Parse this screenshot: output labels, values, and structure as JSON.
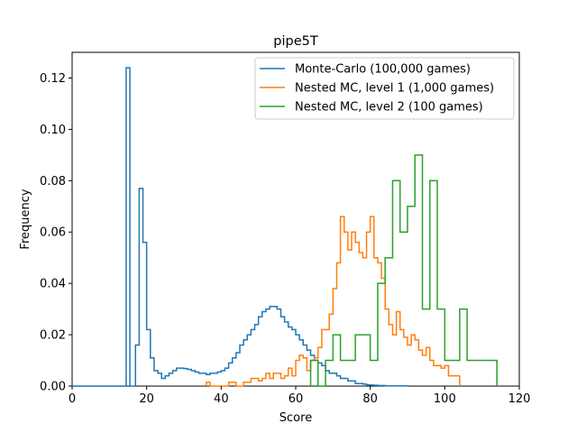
{
  "chart_data": {
    "type": "line",
    "title": "pipe5T",
    "xlabel": "Score",
    "ylabel": "Frequency",
    "xlim": [
      0,
      120
    ],
    "ylim": [
      0,
      0.13
    ],
    "x_ticks": [
      "0",
      "20",
      "40",
      "60",
      "80",
      "100",
      "120"
    ],
    "y_ticks": [
      "0.00",
      "0.02",
      "0.04",
      "0.06",
      "0.08",
      "0.10",
      "0.12"
    ],
    "grid": false,
    "legend_position": "upper-right",
    "drawstyle": "steps",
    "series": [
      {
        "name": "Monte-Carlo (100,000 games)",
        "color": "#1f77b4",
        "x": [
          0,
          14,
          14.5,
          15,
          15.5,
          16,
          16.5,
          17,
          17.5,
          18,
          18.5,
          19,
          19.5,
          20,
          20.5,
          21,
          21.5,
          22,
          23,
          24,
          25,
          26,
          27,
          28,
          29,
          30,
          31,
          32,
          33,
          34,
          35,
          36,
          37,
          38,
          39,
          40,
          41,
          42,
          43,
          44,
          45,
          46,
          47,
          48,
          49,
          50,
          51,
          52,
          53,
          54,
          55,
          56,
          57,
          58,
          59,
          60,
          61,
          62,
          63,
          64,
          65,
          66,
          67,
          68,
          69,
          70,
          71,
          72,
          73,
          74,
          75,
          76,
          77,
          78,
          79,
          80,
          81,
          82,
          83,
          84,
          85,
          86,
          87,
          88,
          89,
          90
        ],
        "y": [
          0,
          0,
          0.124,
          0.124,
          0,
          0,
          0,
          0.016,
          0.016,
          0.077,
          0.077,
          0.056,
          0.056,
          0.022,
          0.022,
          0.011,
          0.011,
          0.006,
          0.005,
          0.003,
          0.004,
          0.005,
          0.006,
          0.007,
          0.007,
          0.0068,
          0.0065,
          0.006,
          0.0055,
          0.005,
          0.005,
          0.0045,
          0.005,
          0.005,
          0.0055,
          0.006,
          0.007,
          0.009,
          0.011,
          0.013,
          0.016,
          0.018,
          0.02,
          0.022,
          0.024,
          0.027,
          0.029,
          0.03,
          0.031,
          0.031,
          0.03,
          0.027,
          0.025,
          0.023,
          0.022,
          0.02,
          0.018,
          0.016,
          0.014,
          0.012,
          0.01,
          0.009,
          0.008,
          0.006,
          0.005,
          0.005,
          0.004,
          0.003,
          0.003,
          0.002,
          0.002,
          0.001,
          0.001,
          0.0008,
          0.0005,
          0.0004,
          0.0003,
          0.0002,
          0.0002,
          0.0001,
          0.0001,
          0.0001,
          0.0001,
          0.0001,
          0.0001,
          0.0001
        ]
      },
      {
        "name": "Nested MC, level 1 (1,000 games)",
        "color": "#ff7f0e",
        "x": [
          36,
          38,
          40,
          42,
          44,
          46,
          48,
          50,
          52,
          54,
          56,
          58,
          60,
          62,
          64,
          66,
          68,
          70,
          72,
          74,
          76,
          78,
          80,
          82,
          84,
          86,
          88,
          90,
          92,
          94,
          96,
          98,
          100,
          102
        ],
        "y": [
          0,
          0.001,
          0,
          0,
          0.001,
          0.001,
          0.002,
          0.002,
          0.003,
          0.005,
          0.005,
          0.004,
          0.007,
          0.012,
          0.02,
          0.028,
          0.038,
          0.05,
          0.066,
          0.06,
          0.054,
          0.062,
          0.05,
          0.042,
          0.03,
          0.024,
          0.022,
          0.02,
          0.016,
          0.012,
          0.008,
          0.004,
          0.002,
          0
        ],
        "step_edges": [
          36,
          37,
          38,
          39,
          40,
          41,
          42,
          43,
          44,
          45,
          46,
          47,
          48,
          49,
          50,
          51,
          52,
          53,
          54,
          55,
          56,
          57,
          58,
          59,
          60,
          61,
          62,
          63,
          64,
          65,
          66,
          67,
          68,
          69,
          70,
          71,
          72,
          73,
          74,
          75,
          76,
          77,
          78,
          79,
          80,
          81,
          82,
          83,
          84,
          85,
          86,
          87,
          88,
          89,
          90,
          91,
          92,
          93,
          94,
          95,
          96,
          97,
          98,
          99,
          100,
          101,
          102,
          103,
          104
        ],
        "step_values": [
          0.0015,
          0,
          0,
          0,
          0,
          0,
          0.0015,
          0.0015,
          0,
          0,
          0.0015,
          0.0015,
          0.003,
          0.003,
          0.002,
          0.003,
          0.005,
          0.003,
          0.005,
          0.005,
          0.003,
          0.004,
          0.007,
          0.004,
          0.01,
          0.012,
          0.011,
          0.006,
          0.01,
          0.011,
          0.015,
          0.022,
          0.022,
          0.028,
          0.038,
          0.048,
          0.066,
          0.06,
          0.053,
          0.06,
          0.056,
          0.052,
          0.05,
          0.06,
          0.066,
          0.05,
          0.048,
          0.042,
          0.03,
          0.024,
          0.02,
          0.029,
          0.022,
          0.019,
          0.016,
          0.02,
          0.018,
          0.014,
          0.012,
          0.015,
          0.01,
          0.008,
          0.008,
          0.007,
          0.008,
          0.004,
          0.004,
          0.004,
          0
        ]
      },
      {
        "name": "Nested MC, level 2 (100 games)",
        "color": "#2ca02c",
        "step_edges": [
          64,
          66,
          68,
          70,
          72,
          74,
          76,
          78,
          80,
          82,
          84,
          86,
          88,
          90,
          92,
          94,
          96,
          98,
          100,
          102,
          104,
          106,
          108,
          110,
          112,
          114
        ],
        "step_values": [
          0.01,
          0,
          0.01,
          0.02,
          0.01,
          0.01,
          0.02,
          0.02,
          0.01,
          0.04,
          0.05,
          0.08,
          0.06,
          0.07,
          0.09,
          0.03,
          0.08,
          0.03,
          0.01,
          0.01,
          0.03,
          0.01,
          0.01,
          0.01,
          0.01
        ]
      }
    ]
  }
}
